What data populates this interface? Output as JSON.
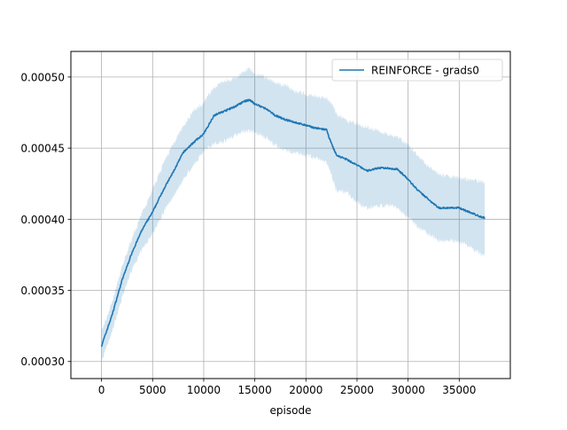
{
  "chart_data": {
    "type": "line",
    "title": "",
    "xlabel": "episode",
    "ylabel": "",
    "xlim": [
      -3000,
      40000
    ],
    "ylim": [
      0.000288,
      0.000518
    ],
    "grid": true,
    "legend_position": "top-right",
    "x_ticks": [
      0,
      5000,
      10000,
      15000,
      20000,
      25000,
      30000,
      35000
    ],
    "x_tick_labels": [
      "0",
      "5000",
      "10000",
      "15000",
      "20000",
      "25000",
      "30000",
      "35000"
    ],
    "y_ticks": [
      0.0003,
      0.00035,
      0.0004,
      0.00045,
      0.0005
    ],
    "y_tick_labels": [
      "0.00030",
      "0.00035",
      "0.00040",
      "0.00045",
      "0.00050"
    ],
    "series": [
      {
        "name": "REINFORCE - grads0",
        "color": "#1f77b4",
        "band_color": "#1f77b4",
        "band_opacity": 0.2,
        "x": [
          0,
          1000,
          2000,
          3000,
          4000,
          5000,
          6000,
          7000,
          8000,
          9000,
          10000,
          11000,
          12000,
          13000,
          14000,
          14500,
          15000,
          16000,
          17000,
          18000,
          19000,
          20000,
          21000,
          22000,
          22500,
          23000,
          24000,
          25000,
          26000,
          27000,
          28000,
          29000,
          30000,
          31000,
          32000,
          33000,
          34000,
          35000,
          36000,
          37000,
          37500
        ],
        "y": [
          0.000311,
          0.000332,
          0.000357,
          0.000377,
          0.000393,
          0.000405,
          0.00042,
          0.000433,
          0.000447,
          0.000454,
          0.00046,
          0.000473,
          0.000476,
          0.000479,
          0.000483,
          0.000484,
          0.000481,
          0.000478,
          0.000473,
          0.00047,
          0.000468,
          0.000466,
          0.000464,
          0.000463,
          0.000453,
          0.000445,
          0.000442,
          0.000438,
          0.000434,
          0.000436,
          0.000436,
          0.000435,
          0.000428,
          0.00042,
          0.000414,
          0.000408,
          0.000408,
          0.000408,
          0.000405,
          0.000402,
          0.000401
        ],
        "upper": [
          0.000321,
          0.000341,
          0.000366,
          0.000387,
          0.000405,
          0.000421,
          0.000438,
          0.000453,
          0.000465,
          0.000476,
          0.000482,
          0.000493,
          0.000497,
          0.000499,
          0.000504,
          0.000506,
          0.000502,
          0.0005,
          0.000496,
          0.000494,
          0.00049,
          0.000488,
          0.000486,
          0.000485,
          0.000482,
          0.000474,
          0.000469,
          0.000467,
          0.000465,
          0.000462,
          0.00046,
          0.000458,
          0.000452,
          0.000444,
          0.000437,
          0.000432,
          0.00043,
          0.000429,
          0.000428,
          0.000427,
          0.000426
        ],
        "lower": [
          0.0003,
          0.00032,
          0.000345,
          0.000365,
          0.000379,
          0.00039,
          0.000404,
          0.000416,
          0.000428,
          0.000438,
          0.000448,
          0.000453,
          0.000455,
          0.000459,
          0.000462,
          0.000462,
          0.000461,
          0.000458,
          0.000452,
          0.000448,
          0.000447,
          0.000445,
          0.000443,
          0.00044,
          0.000431,
          0.00042,
          0.000419,
          0.000412,
          0.000408,
          0.000409,
          0.00041,
          0.000408,
          0.000401,
          0.000394,
          0.00039,
          0.000385,
          0.000385,
          0.000384,
          0.000381,
          0.000376,
          0.000374
        ]
      }
    ]
  }
}
